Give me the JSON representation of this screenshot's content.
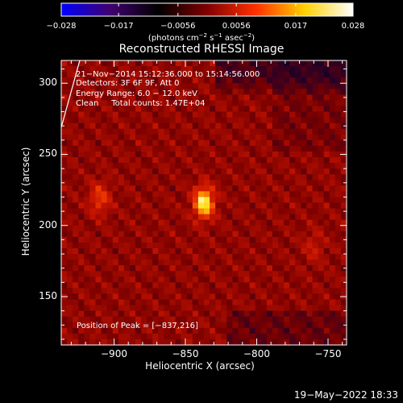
{
  "colorbar": {
    "tick_labels": [
      "−0.028",
      "−0.017",
      "−0.0056",
      "0.0056",
      "0.017",
      "0.028"
    ],
    "tick_values": [
      -0.028,
      -0.017,
      -0.0056,
      0.0056,
      0.017,
      0.028
    ],
    "range": [
      -0.028,
      0.028
    ],
    "units_prefix": "(photons cm",
    "units_exp1": "−2",
    "units_mid": " s",
    "units_exp2": "−1",
    "units_mid2": " asec",
    "units_exp3": "−2",
    "units_suffix": ")",
    "colors": [
      "#0000ff",
      "#400070",
      "#000000",
      "#800000",
      "#ff3000",
      "#ffd000",
      "#ffffff"
    ]
  },
  "title": "Reconstructed RHESSI Image",
  "info_lines": [
    "21−Nov−2014 15:12:36.000 to 15:14:56.000",
    "Detectors: 3F 6F 9F, Att 0",
    "Energy Range: 6.0 − 12.0 keV",
    "Clean     Total counts: 1.47E+04"
  ],
  "peak_text": "Position of Peak = [−837,216]",
  "axes": {
    "xlabel": "Heliocentric X (arcsec)",
    "ylabel": "Heliocentric Y (arcsec)",
    "xlim": [
      -937,
      -737
    ],
    "ylim": [
      116,
      316
    ],
    "xtick_values": [
      -900,
      -850,
      -800,
      -750
    ],
    "xtick_labels": [
      "−900",
      "−850",
      "−800",
      "−750"
    ],
    "ytick_values": [
      150,
      200,
      250,
      300
    ],
    "ytick_labels": [
      "150",
      "200",
      "250",
      "300"
    ]
  },
  "sources": [
    {
      "x": -837,
      "y": 216,
      "peak": 1.0
    },
    {
      "x": -910,
      "y": 219,
      "peak": 0.45
    },
    {
      "x": -760,
      "y": 185,
      "peak": 0.22
    }
  ],
  "timestamp": "19−May−2022 18:33"
}
